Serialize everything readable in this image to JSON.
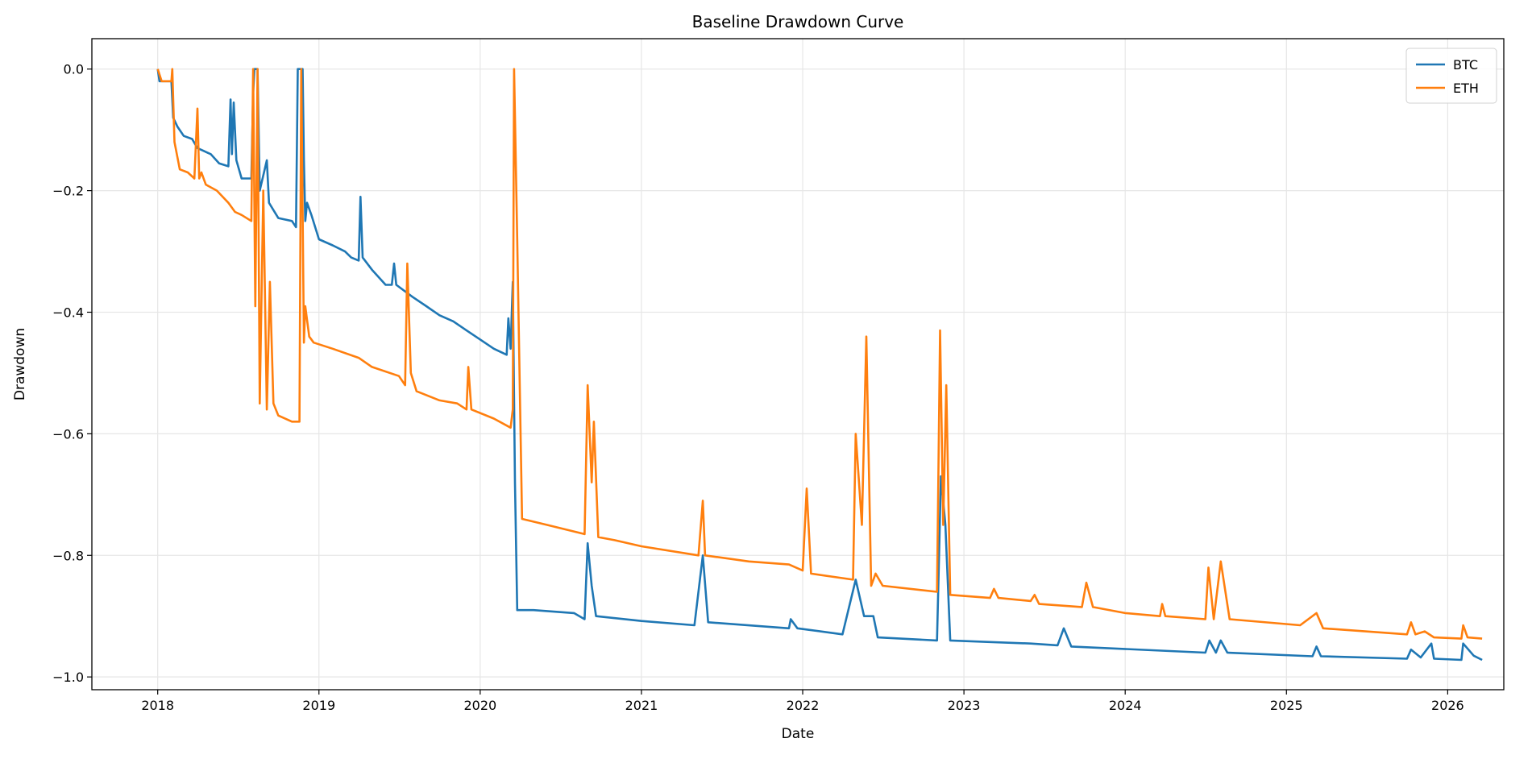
{
  "chart_data": {
    "type": "line",
    "title": "Baseline Drawdown Curve",
    "xlabel": "Date",
    "ylabel": "Drawdown",
    "xlim": [
      "2017-08-05",
      "2026-05-08"
    ],
    "ylim": [
      -1.021,
      0.05
    ],
    "x_ticks": [
      "2018",
      "2019",
      "2020",
      "2021",
      "2022",
      "2023",
      "2024",
      "2025",
      "2026"
    ],
    "y_ticks": [
      0.0,
      -0.2,
      -0.4,
      -0.6,
      -0.8,
      -1.0
    ],
    "y_tick_labels": [
      "0.0",
      "−0.2",
      "−0.4",
      "−0.6",
      "−0.8",
      "−1.0"
    ],
    "grid": true,
    "legend_placement": "top-right",
    "colors": {
      "BTC": "#1f77b4",
      "ETH": "#ff7f0e"
    },
    "series": [
      {
        "name": "BTC",
        "points": [
          [
            "2018-01-01",
            0
          ],
          [
            "2018-01-05",
            -0.02
          ],
          [
            "2018-02-01",
            -0.02
          ],
          [
            "2018-02-05",
            -0.08
          ],
          [
            "2018-02-15",
            -0.095
          ],
          [
            "2018-03-01",
            -0.11
          ],
          [
            "2018-03-20",
            -0.115
          ],
          [
            "2018-04-01",
            -0.13
          ],
          [
            "2018-05-01",
            -0.14
          ],
          [
            "2018-05-20",
            -0.155
          ],
          [
            "2018-06-10",
            -0.16
          ],
          [
            "2018-06-15",
            -0.05
          ],
          [
            "2018-06-18",
            -0.14
          ],
          [
            "2018-06-22",
            -0.055
          ],
          [
            "2018-06-28",
            -0.15
          ],
          [
            "2018-07-10",
            -0.18
          ],
          [
            "2018-08-01",
            -0.18
          ],
          [
            "2018-08-05",
            -0.04
          ],
          [
            "2018-08-08",
            0
          ],
          [
            "2018-08-15",
            0
          ],
          [
            "2018-08-20",
            -0.2
          ],
          [
            "2018-09-05",
            -0.15
          ],
          [
            "2018-09-10",
            -0.22
          ],
          [
            "2018-10-01",
            -0.245
          ],
          [
            "2018-11-01",
            -0.25
          ],
          [
            "2018-11-10",
            -0.26
          ],
          [
            "2018-11-14",
            0
          ],
          [
            "2018-11-25",
            0
          ],
          [
            "2018-11-28",
            -0.15
          ],
          [
            "2018-12-01",
            -0.25
          ],
          [
            "2018-12-05",
            -0.22
          ],
          [
            "2018-12-15",
            -0.24
          ],
          [
            "2019-01-01",
            -0.28
          ],
          [
            "2019-02-01",
            -0.29
          ],
          [
            "2019-03-01",
            -0.3
          ],
          [
            "2019-03-15",
            -0.31
          ],
          [
            "2019-04-01",
            -0.315
          ],
          [
            "2019-04-05",
            -0.21
          ],
          [
            "2019-04-10",
            -0.31
          ],
          [
            "2019-05-01",
            -0.33
          ],
          [
            "2019-06-01",
            -0.355
          ],
          [
            "2019-06-15",
            -0.355
          ],
          [
            "2019-06-20",
            -0.32
          ],
          [
            "2019-06-25",
            -0.355
          ],
          [
            "2019-08-01",
            -0.375
          ],
          [
            "2019-09-01",
            -0.39
          ],
          [
            "2019-10-01",
            -0.405
          ],
          [
            "2019-11-01",
            -0.415
          ],
          [
            "2019-12-01",
            -0.43
          ],
          [
            "2020-01-01",
            -0.445
          ],
          [
            "2020-02-01",
            -0.46
          ],
          [
            "2020-03-01",
            -0.47
          ],
          [
            "2020-03-05",
            -0.41
          ],
          [
            "2020-03-10",
            -0.46
          ],
          [
            "2020-03-15",
            -0.35
          ],
          [
            "2020-03-20",
            -0.68
          ],
          [
            "2020-03-25",
            -0.89
          ],
          [
            "2020-05-01",
            -0.89
          ],
          [
            "2020-08-01",
            -0.895
          ],
          [
            "2020-08-25",
            -0.905
          ],
          [
            "2020-09-01",
            -0.78
          ],
          [
            "2020-09-10",
            -0.85
          ],
          [
            "2020-09-20",
            -0.9
          ],
          [
            "2021-01-01",
            -0.908
          ],
          [
            "2021-05-01",
            -0.915
          ],
          [
            "2021-05-20",
            -0.8
          ],
          [
            "2021-06-01",
            -0.91
          ],
          [
            "2021-12-01",
            -0.92
          ],
          [
            "2021-12-05",
            -0.905
          ],
          [
            "2021-12-20",
            -0.92
          ],
          [
            "2022-04-01",
            -0.93
          ],
          [
            "2022-05-01",
            -0.84
          ],
          [
            "2022-05-20",
            -0.9
          ],
          [
            "2022-06-10",
            -0.9
          ],
          [
            "2022-06-20",
            -0.935
          ],
          [
            "2022-11-01",
            -0.94
          ],
          [
            "2022-11-10",
            -0.67
          ],
          [
            "2022-11-20",
            -0.75
          ],
          [
            "2022-12-01",
            -0.94
          ],
          [
            "2023-06-01",
            -0.945
          ],
          [
            "2023-08-01",
            -0.948
          ],
          [
            "2023-08-15",
            -0.92
          ],
          [
            "2023-09-01",
            -0.95
          ],
          [
            "2024-07-01",
            -0.96
          ],
          [
            "2024-07-10",
            -0.94
          ],
          [
            "2024-07-25",
            -0.96
          ],
          [
            "2024-08-05",
            -0.94
          ],
          [
            "2024-08-20",
            -0.96
          ],
          [
            "2025-03-01",
            -0.966
          ],
          [
            "2025-03-10",
            -0.95
          ],
          [
            "2025-03-20",
            -0.966
          ],
          [
            "2025-10-01",
            -0.97
          ],
          [
            "2025-10-10",
            -0.955
          ],
          [
            "2025-11-01",
            -0.968
          ],
          [
            "2025-11-25",
            -0.945
          ],
          [
            "2025-12-01",
            -0.97
          ],
          [
            "2026-02-01",
            -0.972
          ],
          [
            "2026-02-05",
            -0.945
          ],
          [
            "2026-03-01",
            -0.965
          ],
          [
            "2026-03-20",
            -0.972
          ]
        ]
      },
      {
        "name": "ETH",
        "points": [
          [
            "2018-01-01",
            0
          ],
          [
            "2018-01-10",
            -0.02
          ],
          [
            "2018-02-01",
            -0.02
          ],
          [
            "2018-02-03",
            0
          ],
          [
            "2018-02-08",
            -0.12
          ],
          [
            "2018-02-20",
            -0.165
          ],
          [
            "2018-03-10",
            -0.17
          ],
          [
            "2018-03-25",
            -0.18
          ],
          [
            "2018-04-01",
            -0.065
          ],
          [
            "2018-04-05",
            -0.18
          ],
          [
            "2018-04-10",
            -0.17
          ],
          [
            "2018-04-20",
            -0.19
          ],
          [
            "2018-05-15",
            -0.2
          ],
          [
            "2018-06-10",
            -0.22
          ],
          [
            "2018-06-25",
            -0.235
          ],
          [
            "2018-07-10",
            -0.24
          ],
          [
            "2018-08-01",
            -0.25
          ],
          [
            "2018-08-05",
            0
          ],
          [
            "2018-08-10",
            -0.39
          ],
          [
            "2018-08-15",
            0
          ],
          [
            "2018-08-20",
            -0.55
          ],
          [
            "2018-08-28",
            -0.2
          ],
          [
            "2018-09-05",
            -0.56
          ],
          [
            "2018-09-12",
            -0.35
          ],
          [
            "2018-09-20",
            -0.55
          ],
          [
            "2018-10-01",
            -0.57
          ],
          [
            "2018-11-01",
            -0.58
          ],
          [
            "2018-11-18",
            -0.58
          ],
          [
            "2018-11-22",
            0
          ],
          [
            "2018-11-28",
            -0.45
          ],
          [
            "2018-12-01",
            -0.39
          ],
          [
            "2018-12-10",
            -0.44
          ],
          [
            "2018-12-20",
            -0.45
          ],
          [
            "2019-02-01",
            -0.46
          ],
          [
            "2019-04-01",
            -0.475
          ],
          [
            "2019-05-01",
            -0.49
          ],
          [
            "2019-07-01",
            -0.505
          ],
          [
            "2019-07-15",
            -0.52
          ],
          [
            "2019-07-20",
            -0.32
          ],
          [
            "2019-07-28",
            -0.5
          ],
          [
            "2019-08-10",
            -0.53
          ],
          [
            "2019-10-01",
            -0.545
          ],
          [
            "2019-11-10",
            -0.55
          ],
          [
            "2019-12-01",
            -0.56
          ],
          [
            "2019-12-05",
            -0.49
          ],
          [
            "2019-12-12",
            -0.56
          ],
          [
            "2020-02-01",
            -0.575
          ],
          [
            "2020-03-10",
            -0.59
          ],
          [
            "2020-03-15",
            -0.56
          ],
          [
            "2020-03-18",
            0
          ],
          [
            "2020-03-25",
            -0.28
          ],
          [
            "2020-04-05",
            -0.74
          ],
          [
            "2020-06-01",
            -0.75
          ],
          [
            "2020-08-25",
            -0.765
          ],
          [
            "2020-09-01",
            -0.52
          ],
          [
            "2020-09-10",
            -0.68
          ],
          [
            "2020-09-15",
            -0.58
          ],
          [
            "2020-09-25",
            -0.77
          ],
          [
            "2020-11-01",
            -0.775
          ],
          [
            "2021-01-01",
            -0.785
          ],
          [
            "2021-05-10",
            -0.8
          ],
          [
            "2021-05-20",
            -0.71
          ],
          [
            "2021-05-25",
            -0.8
          ],
          [
            "2021-09-01",
            -0.81
          ],
          [
            "2021-12-01",
            -0.815
          ],
          [
            "2022-01-01",
            -0.825
          ],
          [
            "2022-01-10",
            -0.69
          ],
          [
            "2022-01-20",
            -0.83
          ],
          [
            "2022-04-25",
            -0.84
          ],
          [
            "2022-05-01",
            -0.6
          ],
          [
            "2022-05-15",
            -0.75
          ],
          [
            "2022-05-25",
            -0.44
          ],
          [
            "2022-06-05",
            -0.85
          ],
          [
            "2022-06-15",
            -0.83
          ],
          [
            "2022-07-01",
            -0.85
          ],
          [
            "2022-11-01",
            -0.86
          ],
          [
            "2022-11-08",
            -0.43
          ],
          [
            "2022-11-15",
            -0.75
          ],
          [
            "2022-11-22",
            -0.52
          ],
          [
            "2022-12-01",
            -0.865
          ],
          [
            "2023-03-01",
            -0.87
          ],
          [
            "2023-03-10",
            -0.855
          ],
          [
            "2023-03-20",
            -0.87
          ],
          [
            "2023-06-01",
            -0.875
          ],
          [
            "2023-06-10",
            -0.865
          ],
          [
            "2023-06-20",
            -0.88
          ],
          [
            "2023-09-25",
            -0.885
          ],
          [
            "2023-10-05",
            -0.845
          ],
          [
            "2023-10-20",
            -0.885
          ],
          [
            "2024-01-01",
            -0.895
          ],
          [
            "2024-03-20",
            -0.9
          ],
          [
            "2024-03-25",
            -0.88
          ],
          [
            "2024-04-01",
            -0.9
          ],
          [
            "2024-07-01",
            -0.905
          ],
          [
            "2024-07-08",
            -0.82
          ],
          [
            "2024-07-20",
            -0.905
          ],
          [
            "2024-08-05",
            -0.81
          ],
          [
            "2024-08-25",
            -0.905
          ],
          [
            "2025-02-01",
            -0.915
          ],
          [
            "2025-03-10",
            -0.895
          ],
          [
            "2025-03-25",
            -0.92
          ],
          [
            "2025-10-01",
            -0.93
          ],
          [
            "2025-10-10",
            -0.91
          ],
          [
            "2025-10-20",
            -0.93
          ],
          [
            "2025-11-10",
            -0.925
          ],
          [
            "2025-12-01",
            -0.935
          ],
          [
            "2026-02-01",
            -0.937
          ],
          [
            "2026-02-05",
            -0.915
          ],
          [
            "2026-02-15",
            -0.935
          ],
          [
            "2026-03-20",
            -0.937
          ]
        ]
      }
    ]
  }
}
